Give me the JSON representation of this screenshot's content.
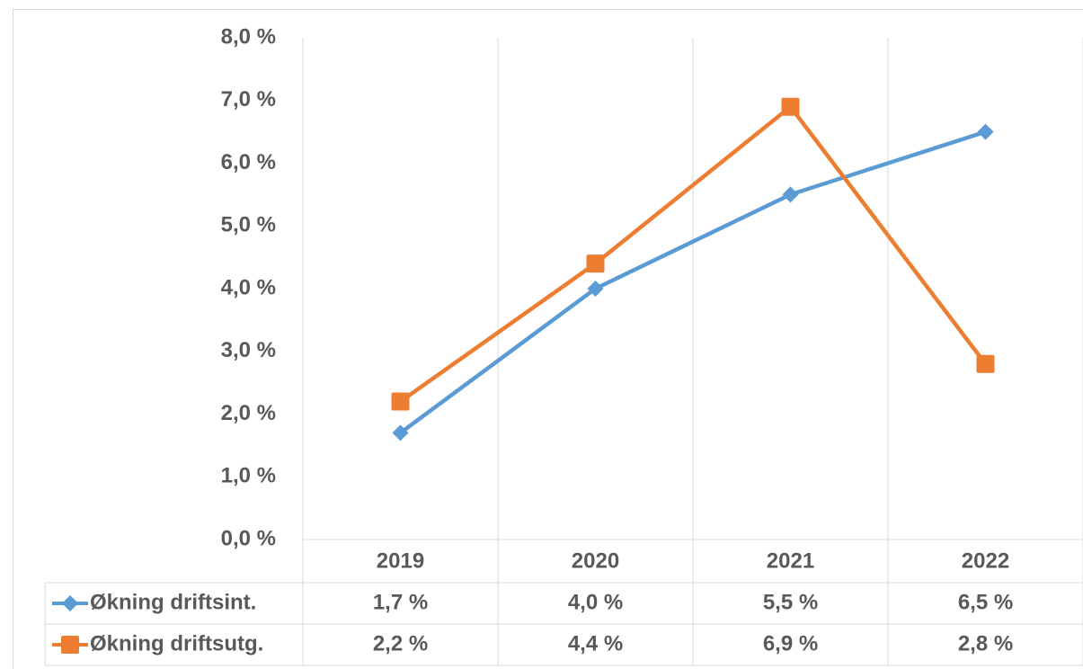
{
  "chart_data": {
    "type": "line",
    "categories": [
      "2019",
      "2020",
      "2021",
      "2022"
    ],
    "series": [
      {
        "name": "Økning driftsint.",
        "color": "#5b9bd5",
        "marker": "diamond",
        "values": [
          1.7,
          4.0,
          5.5,
          6.5
        ],
        "value_labels": [
          "1,7 %",
          "4,0 %",
          "5,5 %",
          "6,5 %"
        ]
      },
      {
        "name": "Økning driftsutg.",
        "color": "#ed7d31",
        "marker": "square",
        "values": [
          2.2,
          4.4,
          6.9,
          2.8
        ],
        "value_labels": [
          "2,2 %",
          "4,4 %",
          "6,9 %",
          "2,8 %"
        ]
      }
    ],
    "ylim": [
      0,
      8
    ],
    "yticks": [
      {
        "value": 0,
        "label": "0,0 %"
      },
      {
        "value": 1,
        "label": "1,0 %"
      },
      {
        "value": 2,
        "label": "2,0 %"
      },
      {
        "value": 3,
        "label": "3,0 %"
      },
      {
        "value": 4,
        "label": "4,0 %"
      },
      {
        "value": 5,
        "label": "5,0 %"
      },
      {
        "value": 6,
        "label": "6,0 %"
      },
      {
        "value": 7,
        "label": "7,0 %"
      },
      {
        "value": 8,
        "label": "8,0 %"
      }
    ],
    "grid": "vertical",
    "legend": "data-table"
  }
}
